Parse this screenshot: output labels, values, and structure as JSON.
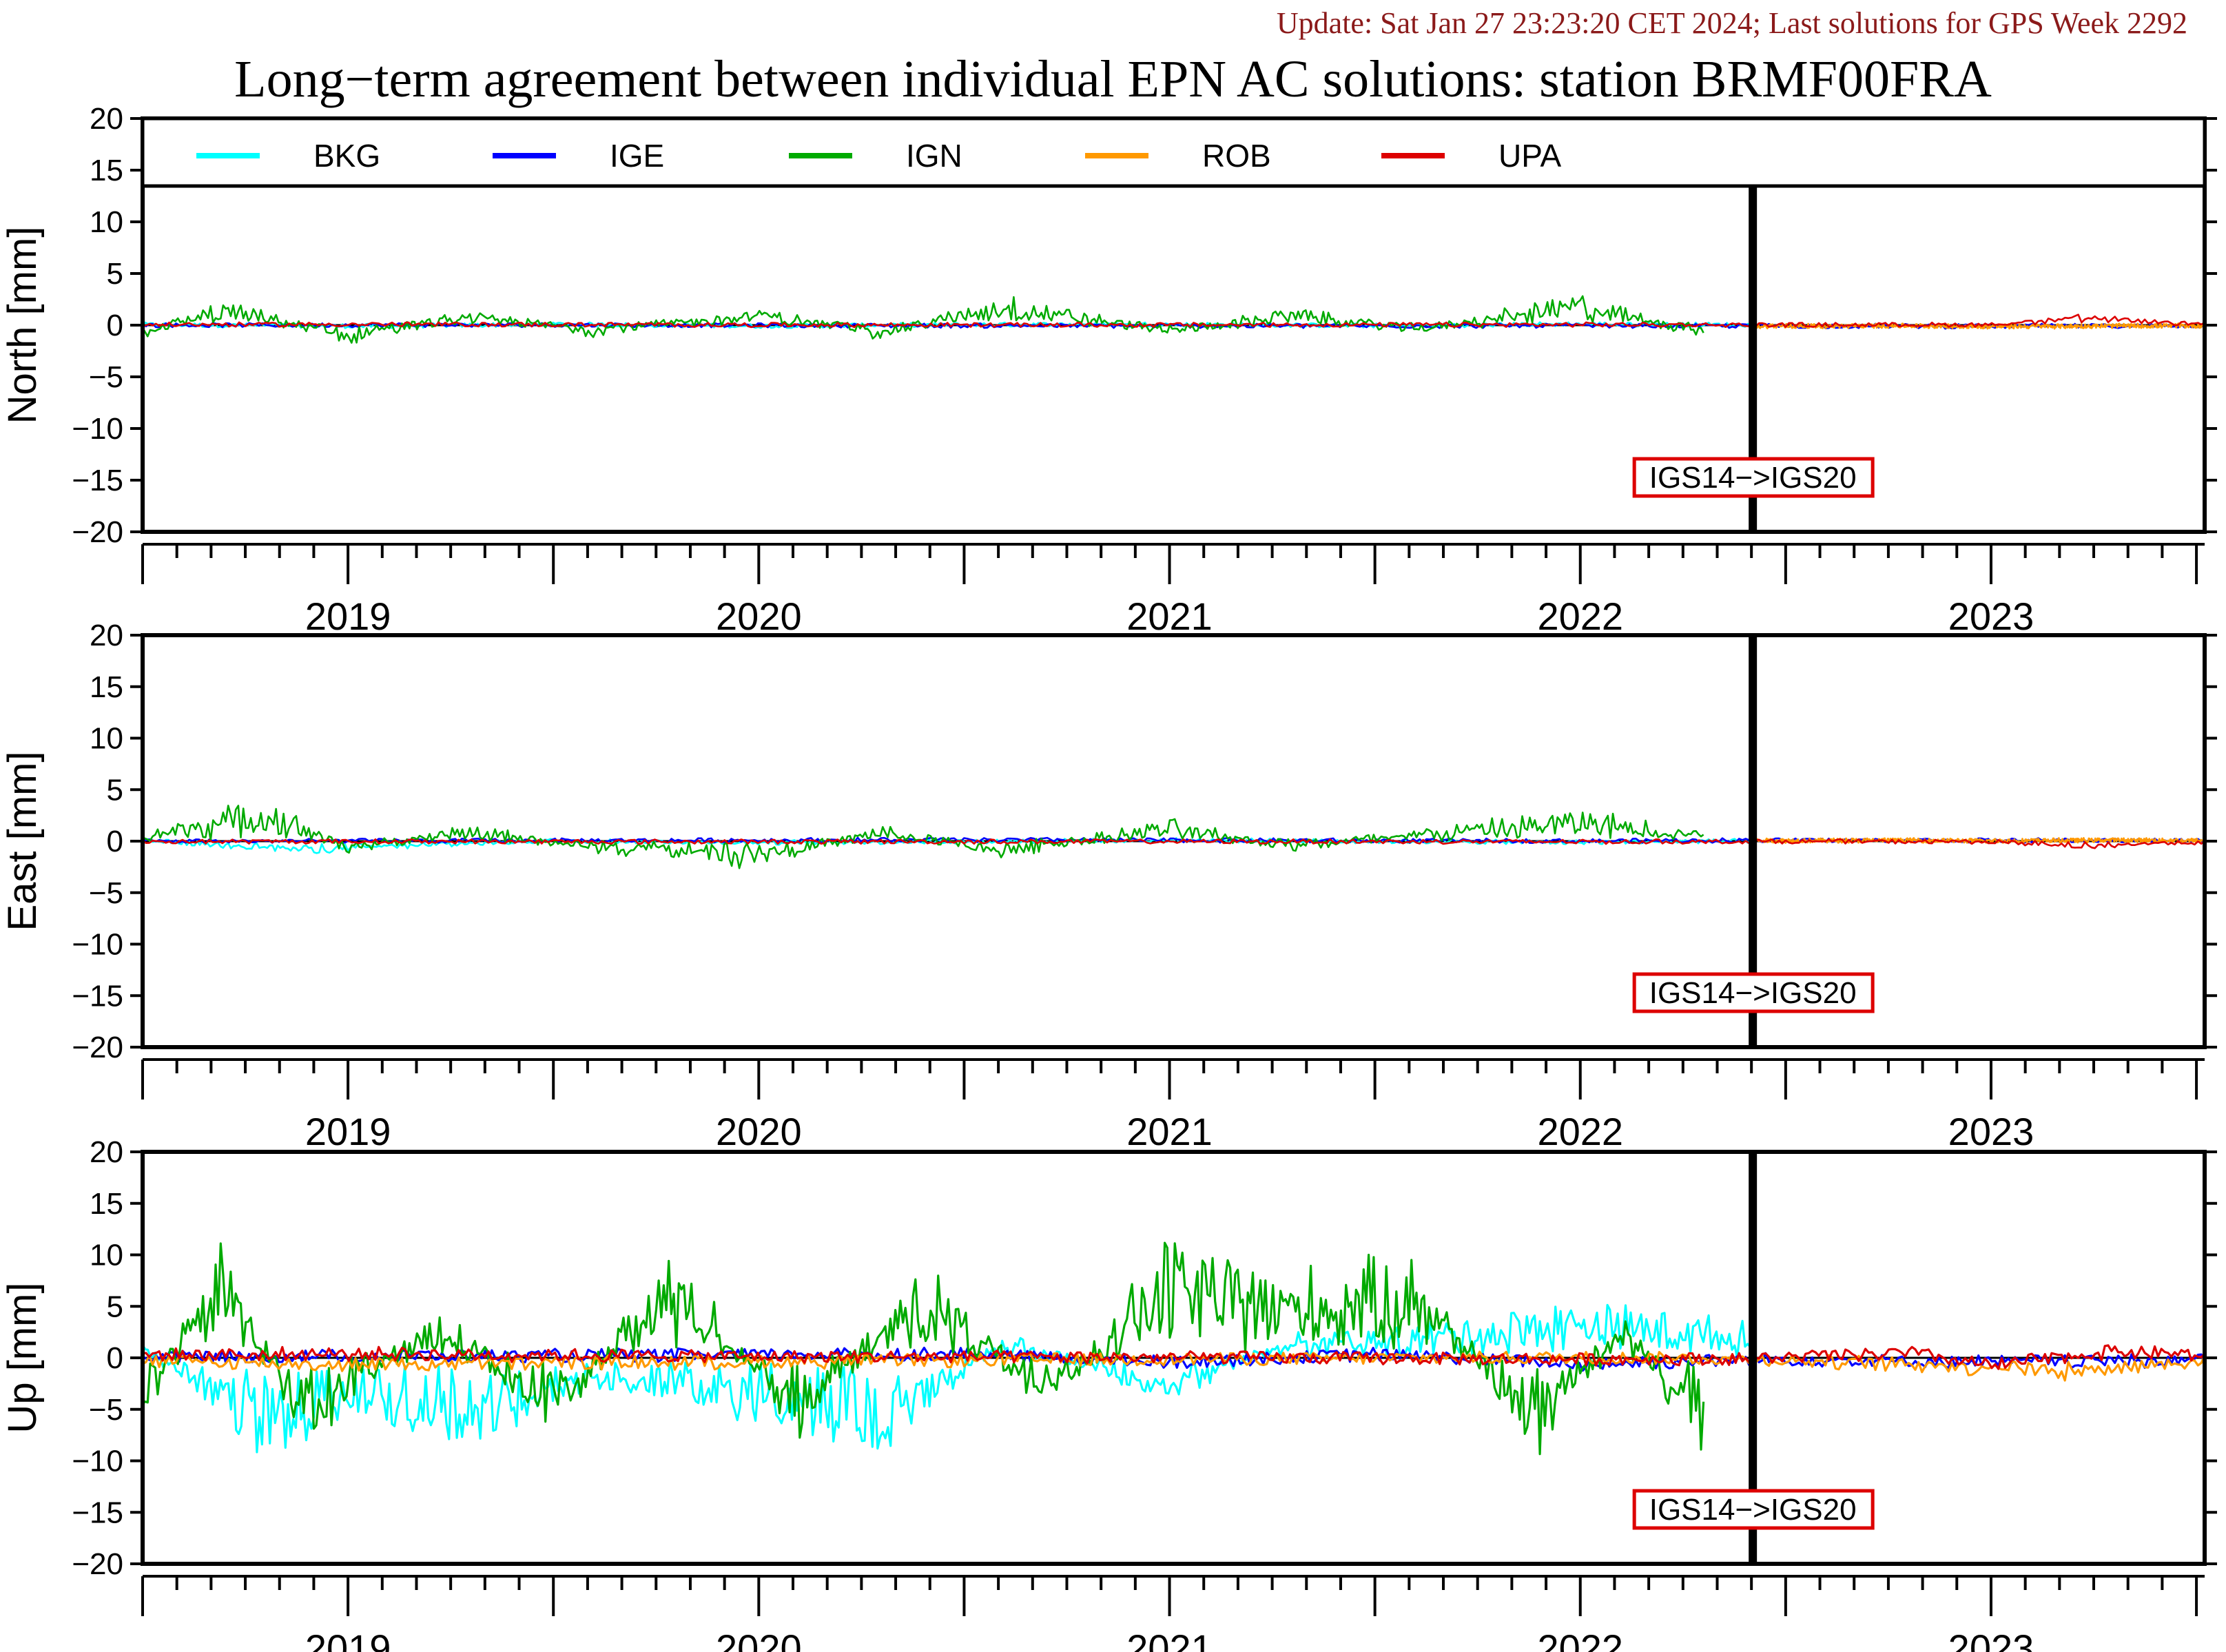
{
  "header": {
    "update": "Update: Sat Jan 27 23:23:20 CET 2024; Last solutions for GPS Week 2292",
    "title": "Long−term agreement between individual EPN AC solutions: station BRMF00FRA"
  },
  "colors": {
    "BKG": "#00ffff",
    "IGE": "#0000ff",
    "IGN": "#00aa00",
    "ROB": "#ff9900",
    "UPA": "#dd0000",
    "update_text": "#8b1a1a",
    "frame_change_box": "#dd0000"
  },
  "chart_data": [
    {
      "type": "line",
      "ylabel": "North [mm]",
      "ylim": [
        -20,
        20
      ],
      "yticks": [
        20,
        15,
        10,
        5,
        0,
        -5,
        -10,
        -15,
        -20
      ],
      "ytick_labels": [
        "20",
        "15",
        "10",
        "5",
        "0",
        "−5",
        "−10",
        "−15",
        "−20"
      ],
      "xlim": [
        2018.5,
        2023.52
      ],
      "year_labels": [
        "2019",
        "2020",
        "2021",
        "2022",
        "2023"
      ],
      "year_boundaries": [
        2019.0,
        2020.0,
        2021.0,
        2022.0,
        2023.0
      ],
      "legend_placement": "top",
      "frame_change": {
        "x": 2022.42,
        "label": "IGS14−>IGS20"
      },
      "series": [
        {
          "name": "BKG",
          "x": [
            2018.5,
            2019.0,
            2019.5,
            2020.0,
            2020.5,
            2021.0,
            2021.5,
            2022.0,
            2022.42
          ],
          "y": [
            0.2,
            -0.4,
            0.3,
            -0.3,
            0.2,
            0.3,
            -0.2,
            0.4,
            0.1
          ]
        },
        {
          "name": "IGE",
          "x": [
            2018.5,
            2019.5,
            2020.5,
            2021.5,
            2022.0,
            2022.5,
            2023.0,
            2023.52
          ],
          "y": [
            0.0,
            0.1,
            -0.2,
            -0.3,
            -0.2,
            -0.3,
            -0.4,
            -0.2
          ]
        },
        {
          "name": "IGN",
          "x": [
            2018.5,
            2018.7,
            2019.0,
            2019.3,
            2019.6,
            2020.0,
            2020.3,
            2020.6,
            2021.0,
            2021.3,
            2021.6,
            2022.0,
            2022.3
          ],
          "y": [
            -1.0,
            2.2,
            -1.5,
            1.2,
            -0.8,
            1.5,
            -1.2,
            3.0,
            -1.0,
            1.6,
            -0.7,
            3.0,
            -1.2
          ]
        },
        {
          "name": "ROB",
          "x": [
            2022.42,
            2022.8,
            2023.0,
            2023.3,
            2023.52
          ],
          "y": [
            -0.4,
            -0.2,
            -0.5,
            -0.3,
            -0.2
          ]
        },
        {
          "name": "UPA",
          "x": [
            2018.5,
            2019.0,
            2020.0,
            2021.0,
            2022.0,
            2022.5,
            2023.0,
            2023.2,
            2023.52
          ],
          "y": [
            0.2,
            0.3,
            0.1,
            0.1,
            0.2,
            0.1,
            0.2,
            2.6,
            0.3
          ]
        }
      ]
    },
    {
      "type": "line",
      "ylabel": "East [mm]",
      "ylim": [
        -20,
        20
      ],
      "yticks": [
        20,
        15,
        10,
        5,
        0,
        -5,
        -10,
        -15,
        -20
      ],
      "ytick_labels": [
        "20",
        "15",
        "10",
        "5",
        "0",
        "−5",
        "−10",
        "−15",
        "−20"
      ],
      "xlim": [
        2018.5,
        2023.52
      ],
      "year_labels": [
        "2019",
        "2020",
        "2021",
        "2022",
        "2023"
      ],
      "year_boundaries": [
        2019.0,
        2020.0,
        2021.0,
        2022.0,
        2023.0
      ],
      "frame_change": {
        "x": 2022.42,
        "label": "IGS14−>IGS20"
      },
      "series": [
        {
          "name": "BKG",
          "x": [
            2018.5,
            2018.9,
            2019.5,
            2020.0,
            2021.0,
            2022.0,
            2022.42
          ],
          "y": [
            0.1,
            -3.0,
            0.2,
            -0.5,
            0.3,
            -0.4,
            0.1
          ]
        },
        {
          "name": "IGE",
          "x": [
            2018.5,
            2019.5,
            2020.5,
            2021.5,
            2022.0,
            2022.5,
            2023.0,
            2023.52
          ],
          "y": [
            0.0,
            0.2,
            0.5,
            0.2,
            0.1,
            0.4,
            0.3,
            0.2
          ]
        },
        {
          "name": "IGN",
          "x": [
            2018.5,
            2018.8,
            2019.0,
            2019.3,
            2019.6,
            2020.0,
            2020.3,
            2020.6,
            2021.0,
            2021.3,
            2021.6,
            2022.0,
            2022.3
          ],
          "y": [
            0.8,
            4.2,
            -1.0,
            1.4,
            -0.9,
            -2.5,
            1.3,
            -1.5,
            2.0,
            -0.8,
            1.0,
            3.0,
            1.0
          ]
        },
        {
          "name": "ROB",
          "x": [
            2022.42,
            2022.8,
            2023.0,
            2023.3,
            2023.52
          ],
          "y": [
            0.2,
            0.3,
            0.1,
            0.4,
            0.2
          ]
        },
        {
          "name": "UPA",
          "x": [
            2018.5,
            2019.0,
            2020.0,
            2021.0,
            2022.0,
            2022.5,
            2023.0,
            2023.2,
            2023.52
          ],
          "y": [
            -0.2,
            -0.1,
            -0.2,
            -0.1,
            -0.2,
            -0.1,
            -0.2,
            -1.8,
            -0.3
          ]
        }
      ]
    },
    {
      "type": "line",
      "ylabel": "Up [mm]",
      "ylim": [
        -20,
        20
      ],
      "yticks": [
        20,
        15,
        10,
        5,
        0,
        -5,
        -10,
        -15,
        -20
      ],
      "ytick_labels": [
        "20",
        "15",
        "10",
        "5",
        "0",
        "−5",
        "−10",
        "−15",
        "−20"
      ],
      "xlim": [
        2018.5,
        2023.52
      ],
      "year_labels": [
        "2019",
        "2020",
        "2021",
        "2022",
        "2023"
      ],
      "year_boundaries": [
        2019.0,
        2020.0,
        2021.0,
        2022.0,
        2023.0
      ],
      "frame_change": {
        "x": 2022.42,
        "label": "IGS14−>IGS20"
      },
      "series": [
        {
          "name": "BKG",
          "x": [
            2018.5,
            2018.8,
            2019.0,
            2019.3,
            2019.6,
            2020.0,
            2020.3,
            2020.6,
            2021.0,
            2021.3,
            2021.6,
            2022.0,
            2022.2,
            2022.42
          ],
          "y": [
            1.0,
            -10.5,
            -5.0,
            -9.0,
            -3.0,
            -6.0,
            -9.0,
            2.0,
            -4.0,
            2.0,
            3.0,
            5.5,
            4.5,
            3.0
          ]
        },
        {
          "name": "IGE",
          "x": [
            2018.5,
            2019.5,
            2020.5,
            2021.0,
            2021.5,
            2022.0,
            2022.42,
            2023.0,
            2023.52
          ],
          "y": [
            0.5,
            0.8,
            1.5,
            -2.0,
            1.5,
            -2.5,
            -0.5,
            -1.5,
            -1.0
          ]
        },
        {
          "name": "IGN",
          "x": [
            2018.5,
            2018.7,
            2018.9,
            2019.2,
            2019.5,
            2019.8,
            2020.1,
            2020.4,
            2020.7,
            2021.0,
            2021.3,
            2021.6,
            2021.9,
            2022.1,
            2022.3
          ],
          "y": [
            -6.0,
            11.5,
            -9.0,
            5.0,
            -7.0,
            10.5,
            -8.0,
            9.0,
            -5.0,
            11.5,
            8.0,
            9.5,
            -9.0,
            5.0,
            -10.0
          ]
        },
        {
          "name": "ROB",
          "x": [
            2018.5,
            2019.0,
            2019.5,
            2020.0,
            2021.0,
            2022.0,
            2022.42,
            2022.7,
            2023.0,
            2023.2,
            2023.52
          ],
          "y": [
            -1.0,
            -2.5,
            -2.0,
            -1.5,
            -0.5,
            0.2,
            -0.5,
            -2.0,
            -3.5,
            -5.0,
            -1.0
          ]
        },
        {
          "name": "UPA",
          "x": [
            2018.5,
            2019.0,
            2019.5,
            2020.0,
            2021.0,
            2022.0,
            2022.42,
            2022.8,
            2023.0,
            2023.3,
            2023.52
          ],
          "y": [
            1.0,
            1.5,
            1.0,
            0.5,
            0.2,
            -0.5,
            -0.3,
            2.0,
            -3.0,
            2.5,
            1.0
          ]
        }
      ]
    }
  ]
}
